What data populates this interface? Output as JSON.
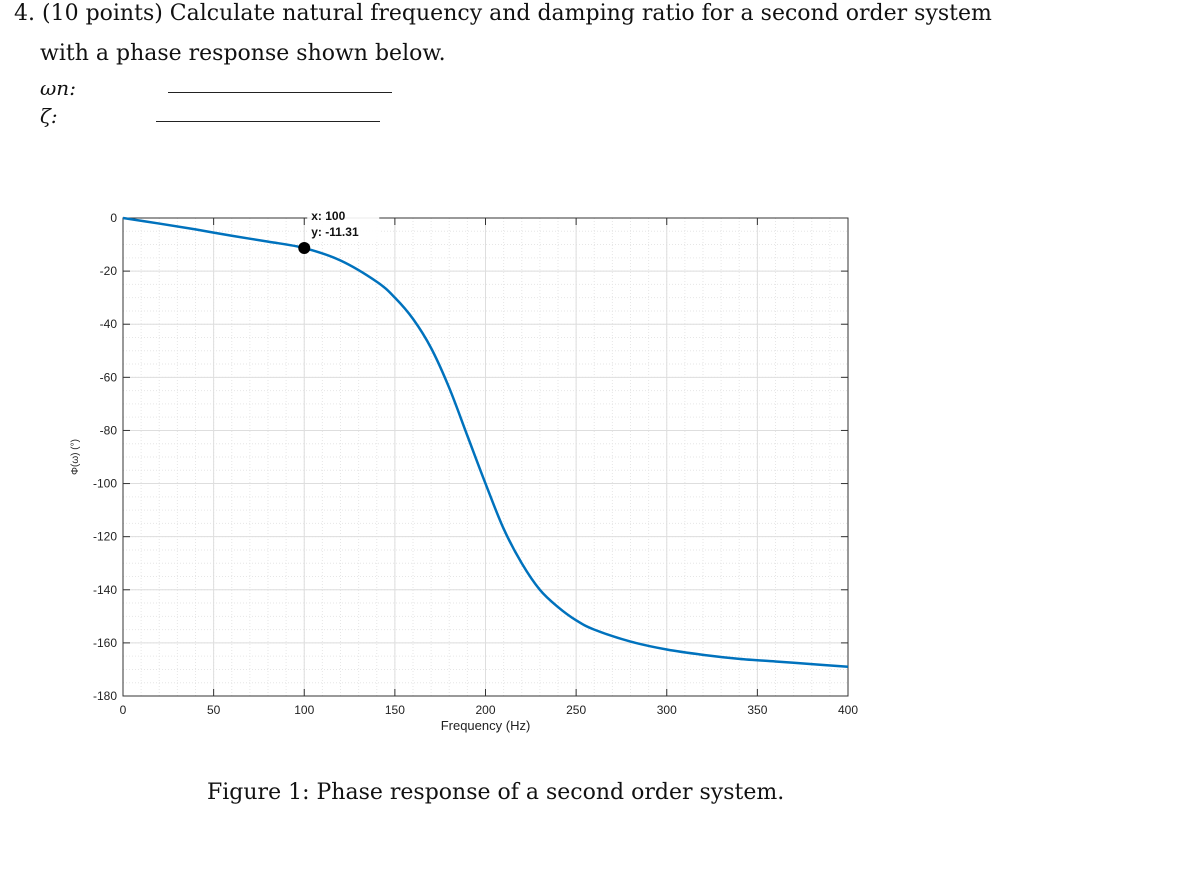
{
  "question": {
    "number": "4.",
    "line1": "(10 points) Calculate natural frequency and damping ratio for a second order system",
    "line2": "with a phase response shown below.",
    "wn_label": "ωn:",
    "zeta_label": "ζ:"
  },
  "caption": "Figure 1: Phase response of a second order system.",
  "colors": {
    "line": "#0072bd",
    "grid": "#e6e6e6",
    "axis": "#333333",
    "marker": "#000000"
  },
  "chart_data": {
    "type": "line",
    "xlabel": "Frequency (Hz)",
    "ylabel": "Φ(ω) (°)",
    "xlim": [
      0,
      400
    ],
    "ylim": [
      -180,
      0
    ],
    "xticks": [
      0,
      50,
      100,
      150,
      200,
      250,
      300,
      350,
      400
    ],
    "yticks": [
      0,
      -20,
      -40,
      -60,
      -80,
      -100,
      -120,
      -140,
      -160,
      -180
    ],
    "grid": true,
    "series": [
      {
        "x": [
          0,
          20,
          40,
          60,
          80,
          100,
          120,
          140,
          150,
          160,
          170,
          180,
          190,
          200,
          210,
          220,
          230,
          240,
          250,
          260,
          280,
          300,
          320,
          340,
          360,
          380,
          400
        ],
        "y": [
          0,
          -2.1,
          -4.3,
          -6.7,
          -8.9,
          -11.31,
          -16.0,
          -24.0,
          -30.0,
          -38.0,
          -49.0,
          -64.0,
          -82.0,
          -100.0,
          -117.0,
          -130.0,
          -140.0,
          -146.5,
          -151.5,
          -155.0,
          -159.5,
          -162.5,
          -164.5,
          -166.0,
          -167.0,
          -168.0,
          -169.0
        ]
      }
    ],
    "annotation": {
      "x": 100,
      "y": -11.31,
      "label_x": "x: 100",
      "label_y": "y: -11.31"
    }
  }
}
